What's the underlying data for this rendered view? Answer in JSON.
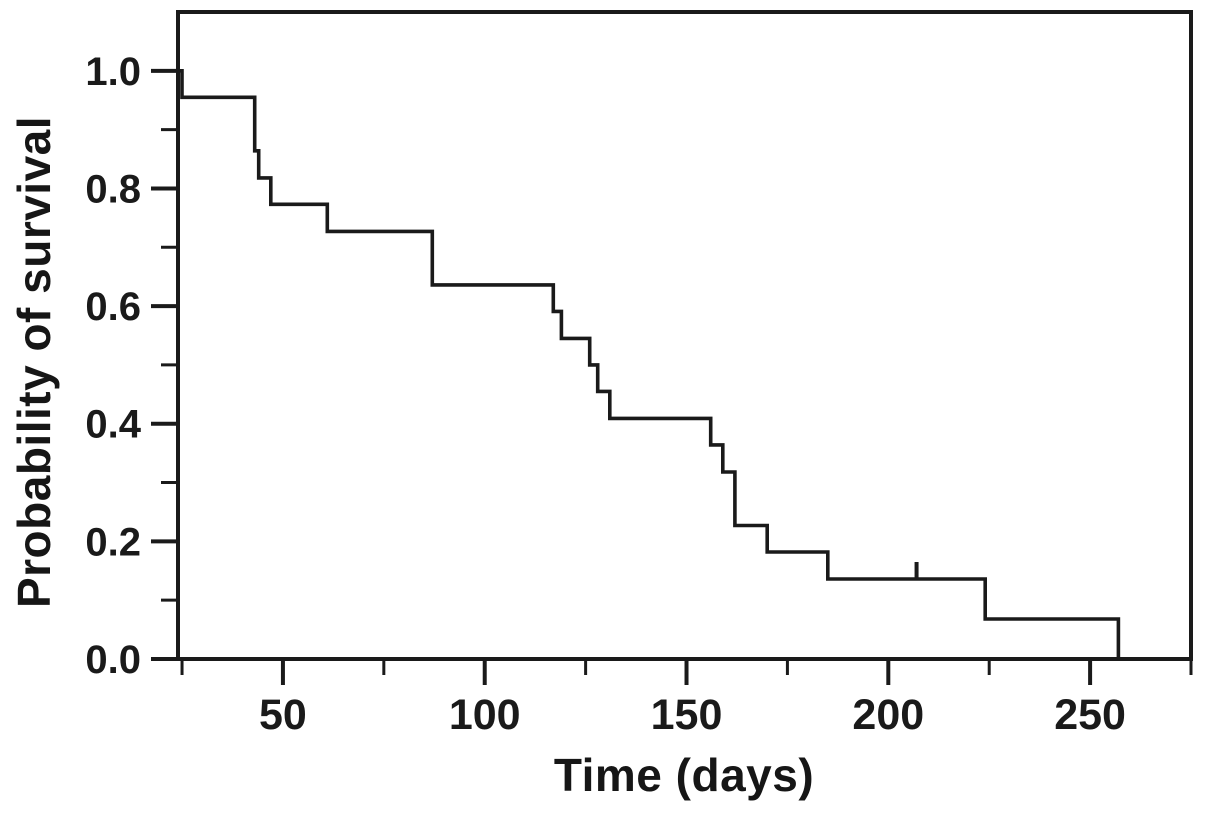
{
  "figure": {
    "background_color": "#ffffff",
    "frame_color": "#1a1a1a",
    "text_color": "#161616"
  },
  "chart_data": {
    "type": "line",
    "chart_kind": "kaplan_meier_survival_step",
    "title": "",
    "xlabel": "Time (days)",
    "ylabel": "Probability of survival",
    "xlim": [
      24,
      275
    ],
    "ylim": [
      0,
      1.1
    ],
    "grid": false,
    "legend": false,
    "x_major_ticks": [
      50,
      100,
      150,
      200,
      250
    ],
    "x_major_tick_labels": [
      "50",
      "100",
      "150",
      "200",
      "250"
    ],
    "x_minor_ticks": [
      25,
      75,
      125,
      175,
      225,
      275
    ],
    "y_major_ticks": [
      0,
      0.2,
      0.4,
      0.6,
      0.8,
      1.0
    ],
    "y_major_tick_labels": [
      "0.0",
      "0.2",
      "0.4",
      "0.6",
      "0.8",
      "1.0"
    ],
    "y_minor_ticks": [
      0.1,
      0.3,
      0.5,
      0.7,
      0.9
    ],
    "series": [
      {
        "name": "Survival",
        "color": "#1a1a1a",
        "steps_x_days": [
          24,
          25,
          43,
          44,
          47,
          61,
          87,
          117,
          119,
          126,
          128,
          131,
          156,
          159,
          162,
          170,
          185,
          224,
          257,
          275
        ],
        "steps_survival": [
          1.0,
          0.955,
          0.864,
          0.818,
          0.773,
          0.727,
          0.636,
          0.591,
          0.545,
          0.5,
          0.455,
          0.409,
          0.364,
          0.318,
          0.227,
          0.182,
          0.136,
          0.068,
          0.0,
          0.0
        ],
        "censor_marks": [
          {
            "x_day": 207,
            "survival": 0.136
          }
        ]
      }
    ]
  }
}
